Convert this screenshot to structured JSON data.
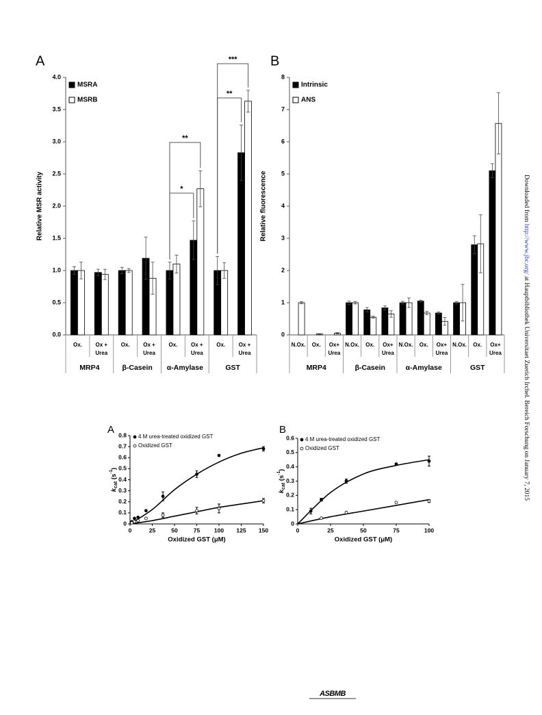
{
  "chart_data": [
    {
      "type": "bar",
      "panel": "A",
      "ylabel": "Relative MSR activity",
      "categories": [
        [
          "Ox."
        ],
        [
          "Ox +",
          "Urea"
        ],
        [
          "Ox."
        ],
        [
          "Ox +",
          "Urea"
        ],
        [
          "Ox."
        ],
        [
          "Ox +",
          "Urea"
        ],
        [
          "Ox."
        ],
        [
          "Ox +",
          "Urea"
        ]
      ],
      "groups": [
        "MRP4",
        "β-Casein",
        "α-Amylase",
        "GST"
      ],
      "series": [
        {
          "name": "MSRA",
          "color": "#000000",
          "values": [
            1.0,
            0.97,
            1.0,
            1.19,
            1.0,
            1.47,
            1.0,
            2.83
          ],
          "errors": [
            0.06,
            0.05,
            0.05,
            0.33,
            0.13,
            0.3,
            0.22,
            0.43
          ]
        },
        {
          "name": "MSRB",
          "color": "#ffffff",
          "values": [
            1.0,
            0.94,
            1.0,
            0.88,
            1.1,
            2.27,
            1.0,
            3.63
          ],
          "errors": [
            0.13,
            0.08,
            0.03,
            0.25,
            0.14,
            0.28,
            0.12,
            0.17
          ]
        }
      ],
      "annotations": [
        "*",
        "**",
        "**",
        "***"
      ],
      "ylim": [
        0,
        4
      ],
      "yticks": [
        {
          "value": 0,
          "label": "0.0"
        },
        0.5,
        {
          "value": 1,
          "label": "1.0"
        },
        1.5,
        {
          "value": 2,
          "label": "2.0"
        },
        2.5,
        {
          "value": 3,
          "label": "3.0"
        },
        3.5,
        {
          "value": 4,
          "label": "4.0"
        }
      ]
    },
    {
      "type": "bar",
      "panel": "B",
      "ylabel": "Relative fluorescence",
      "categories": [
        [
          "N.Ox."
        ],
        [
          "Ox."
        ],
        [
          "Ox+",
          "Urea"
        ],
        [
          "N.Ox."
        ],
        [
          "Ox."
        ],
        [
          "Ox+",
          "Urea"
        ],
        [
          "N.Ox."
        ],
        [
          "Ox."
        ],
        [
          "Ox+",
          "Urea"
        ],
        [
          "N.Ox."
        ],
        [
          "Ox."
        ],
        [
          "Ox+",
          "Urea"
        ]
      ],
      "groups": [
        "MRP4",
        "β-Casein",
        "α-Amylase",
        "GST"
      ],
      "series": [
        {
          "name": "Intrinsic",
          "color": "#000000",
          "values": [
            null,
            null,
            null,
            1.0,
            0.78,
            0.84,
            1.0,
            1.05,
            0.68,
            1.0,
            2.8,
            5.1
          ],
          "errors": [
            null,
            null,
            null,
            0.05,
            0.07,
            0.06,
            0.04,
            0.03,
            0.03,
            0.04,
            0.28,
            0.22
          ]
        },
        {
          "name": "ANS",
          "color": "#ffffff",
          "values": [
            1.0,
            0.03,
            0.05,
            1.0,
            0.55,
            0.65,
            1.0,
            0.68,
            0.42,
            1.0,
            2.83,
            6.57
          ],
          "errors": [
            0.03,
            0.01,
            0.02,
            0.04,
            0.03,
            0.1,
            0.15,
            0.05,
            0.12,
            0.57,
            0.9,
            0.95
          ]
        }
      ],
      "ylim": [
        0,
        8
      ],
      "yticks": [
        0,
        1,
        2,
        3,
        4,
        5,
        6,
        7,
        8
      ]
    },
    {
      "type": "scatter",
      "panel": "A",
      "xlabel": "Oxidized GST (μM)",
      "ylabel": [
        "k",
        "cat",
        " (s",
        "-1",
        ")"
      ],
      "series": [
        {
          "name": "4 M urea-treated oxidized GST",
          "marker": "filled",
          "color": "#000000",
          "x": [
            2,
            5,
            9,
            18,
            37,
            75,
            100,
            150
          ],
          "values": [
            0.02,
            0.05,
            0.06,
            0.12,
            0.25,
            0.45,
            0.62,
            0.68
          ],
          "errors": [
            null,
            null,
            null,
            null,
            0.04,
            0.03,
            null,
            0.02
          ],
          "fit_x": [
            0,
            25,
            50,
            75,
            100,
            125,
            150
          ],
          "fit_values": [
            0,
            0.13,
            0.31,
            0.45,
            0.56,
            0.64,
            0.69
          ]
        },
        {
          "name": "Oxidized GST",
          "marker": "open",
          "color": "#000000",
          "x": [
            2,
            5,
            9,
            18,
            37,
            75,
            100,
            150
          ],
          "values": [
            0.01,
            0.02,
            0.03,
            0.05,
            0.08,
            0.12,
            0.14,
            0.21
          ],
          "errors": [
            null,
            null,
            null,
            null,
            0.02,
            0.03,
            0.04,
            0.02
          ],
          "fit_x": [
            0,
            25,
            50,
            75,
            100,
            125,
            150
          ],
          "fit_values": [
            0,
            0.03,
            0.07,
            0.11,
            0.15,
            0.18,
            0.21
          ]
        }
      ],
      "xlim": [
        0,
        150
      ],
      "xticks": [
        0,
        25,
        50,
        75,
        100,
        125,
        150
      ],
      "ylim": [
        0,
        0.8
      ],
      "yticks": [
        0,
        0.1,
        0.2,
        0.3,
        0.4,
        0.5,
        0.6,
        0.7,
        0.8
      ]
    },
    {
      "type": "scatter",
      "panel": "B",
      "xlabel": "Oxidized GST (μM)",
      "ylabel": [
        "k",
        "cat",
        " (s",
        "-1",
        ")"
      ],
      "series": [
        {
          "name": "4 M urea-treated oxidized GST",
          "marker": "filled",
          "color": "#000000",
          "x": [
            10,
            18,
            37,
            75,
            100
          ],
          "values": [
            0.09,
            0.17,
            0.3,
            0.42,
            0.44
          ],
          "errors": [
            0.02,
            0.01,
            0.015,
            null,
            0.035
          ],
          "fit_x": [
            0,
            25,
            50,
            75,
            100
          ],
          "fit_values": [
            0,
            0.22,
            0.35,
            0.41,
            0.45
          ]
        },
        {
          "name": "Oxidized GST",
          "marker": "open",
          "color": "#000000",
          "x": [
            18,
            37,
            75,
            100
          ],
          "values": [
            0.04,
            0.08,
            0.15,
            0.16
          ],
          "errors": [
            null,
            null,
            null,
            0.01
          ],
          "fit_x": [
            0,
            25,
            50,
            75,
            100
          ],
          "fit_values": [
            0,
            0.05,
            0.09,
            0.13,
            0.17
          ]
        }
      ],
      "xlim": [
        0,
        100
      ],
      "xticks": [
        0,
        25,
        50,
        75,
        100
      ],
      "ylim": [
        0,
        0.6
      ],
      "yticks": [
        0,
        0.1,
        0.2,
        0.3,
        0.4,
        0.5,
        0.6
      ]
    }
  ],
  "margin_note": {
    "before": "Downloaded from ",
    "link": "http://www.jbc.org/",
    "after": " at Hauptbibliothek Universitaet Zuerich Irchel. Bereich Forschung on January 7, 2015"
  },
  "footer_logo": "ASBMB"
}
